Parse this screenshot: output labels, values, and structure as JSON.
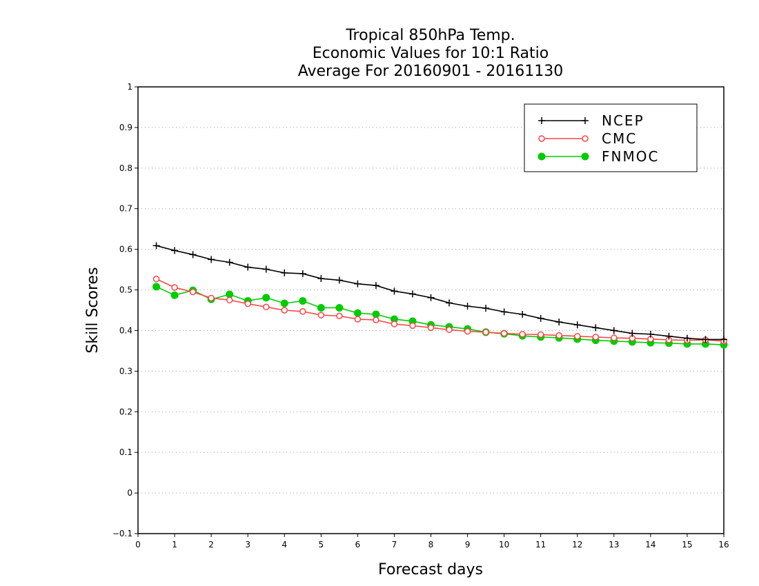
{
  "chart_data": {
    "type": "line",
    "title": [
      "Tropical 850hPa Temp.",
      "Economic Values for 10:1 Ratio",
      "Average For 20160901 - 20161130"
    ],
    "xlabel": "Forecast days",
    "ylabel": "Skill Scores",
    "xlim": [
      0,
      16
    ],
    "ylim": [
      -0.1,
      1
    ],
    "xticks": [
      "0",
      "1",
      "2",
      "3",
      "4",
      "5",
      "6",
      "7",
      "8",
      "9",
      "10",
      "11",
      "12",
      "13",
      "14",
      "15",
      "16"
    ],
    "yticks": [
      "−0.1",
      "0",
      "0.1",
      "0.2",
      "0.3",
      "0.4",
      "0.5",
      "0.6",
      "0.7",
      "0.8",
      "0.9",
      "1"
    ],
    "grid": "horizontal-dotted",
    "legend_position": "top-right",
    "x": [
      0.5,
      1,
      1.5,
      2,
      2.5,
      3,
      3.5,
      4,
      4.5,
      5,
      5.5,
      6,
      6.5,
      7,
      7.5,
      8,
      8.5,
      9,
      9.5,
      10,
      10.5,
      11,
      11.5,
      12,
      12.5,
      13,
      13.5,
      14,
      14.5,
      15,
      15.5,
      16
    ],
    "series": [
      {
        "name": "NCEP",
        "color": "#000000",
        "marker": "plus",
        "values": [
          0.609,
          0.597,
          0.587,
          0.575,
          0.568,
          0.556,
          0.551,
          0.542,
          0.54,
          0.528,
          0.524,
          0.515,
          0.511,
          0.497,
          0.49,
          0.481,
          0.468,
          0.46,
          0.455,
          0.446,
          0.44,
          0.43,
          0.421,
          0.414,
          0.407,
          0.4,
          0.393,
          0.391,
          0.386,
          0.381,
          0.378,
          0.378
        ]
      },
      {
        "name": "CMC",
        "color": "#ff4444",
        "marker": "open-circle",
        "values": [
          0.527,
          0.506,
          0.495,
          0.48,
          0.475,
          0.466,
          0.458,
          0.45,
          0.447,
          0.438,
          0.436,
          0.428,
          0.426,
          0.416,
          0.412,
          0.407,
          0.402,
          0.398,
          0.396,
          0.393,
          0.391,
          0.39,
          0.388,
          0.386,
          0.384,
          0.382,
          0.381,
          0.379,
          0.377,
          0.376,
          0.377,
          0.374
        ]
      },
      {
        "name": "FNMOC",
        "color": "#00cc00",
        "marker": "filled-circle",
        "values": [
          0.508,
          0.487,
          0.499,
          0.477,
          0.489,
          0.473,
          0.481,
          0.467,
          0.473,
          0.456,
          0.456,
          0.443,
          0.44,
          0.428,
          0.423,
          0.414,
          0.409,
          0.404,
          0.396,
          0.392,
          0.387,
          0.384,
          0.382,
          0.379,
          0.376,
          0.374,
          0.372,
          0.37,
          0.369,
          0.367,
          0.367,
          0.365
        ]
      }
    ]
  }
}
